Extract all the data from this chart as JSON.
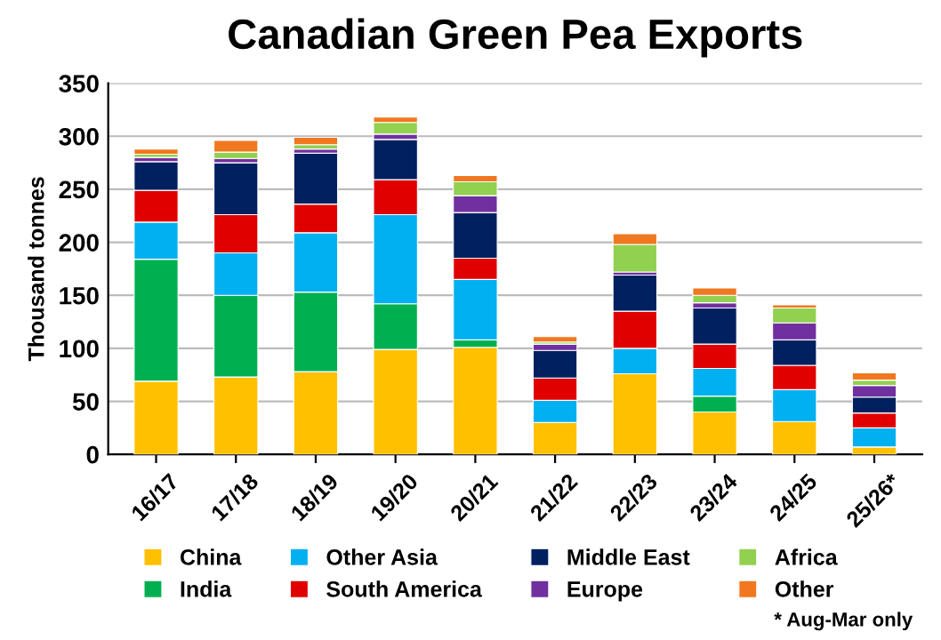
{
  "chart_data": {
    "type": "bar",
    "title": "Canadian Green Pea Exports",
    "ylabel": "Thousand tonnes",
    "stacked": true,
    "categories": [
      "16/17",
      "17/18",
      "18/19",
      "19/20",
      "20/21",
      "21/22",
      "22/23",
      "23/24",
      "24/25",
      "25/26*"
    ],
    "series": [
      {
        "name": "China",
        "color": "#ffc000",
        "values": [
          69,
          73,
          78,
          99,
          101,
          30,
          76,
          40,
          31,
          7
        ]
      },
      {
        "name": "India",
        "color": "#00b050",
        "values": [
          115,
          77,
          75,
          43,
          7,
          null,
          null,
          15,
          null,
          null
        ]
      },
      {
        "name": "Other Asia",
        "color": "#00b0f0",
        "values": [
          35,
          40,
          56,
          84,
          57,
          21,
          24,
          26,
          30,
          18
        ]
      },
      {
        "name": "South America",
        "color": "#e00000",
        "values": [
          30,
          36,
          27,
          33,
          20,
          21,
          35,
          23,
          23,
          14
        ]
      },
      {
        "name": "Middle East",
        "color": "#002060",
        "values": [
          27,
          49,
          48,
          38,
          43,
          26,
          34,
          34,
          24,
          15
        ]
      },
      {
        "name": "Europe",
        "color": "#7030a0",
        "values": [
          4,
          4,
          4,
          5,
          16,
          6,
          3,
          5,
          16,
          11
        ]
      },
      {
        "name": "Africa",
        "color": "#92d050",
        "values": [
          3,
          6,
          4,
          11,
          13,
          2,
          26,
          7,
          14,
          5
        ]
      },
      {
        "name": "Other",
        "color": "#f07820",
        "values": [
          5,
          11,
          7,
          5,
          6,
          5,
          10,
          7,
          3,
          7
        ]
      }
    ],
    "ylim": [
      0,
      350
    ],
    "yticks": [
      0,
      50,
      100,
      150,
      200,
      250,
      300,
      350
    ],
    "grid": "y",
    "legend": "bottom",
    "annotations": [
      "* Aug-Mar only"
    ]
  }
}
